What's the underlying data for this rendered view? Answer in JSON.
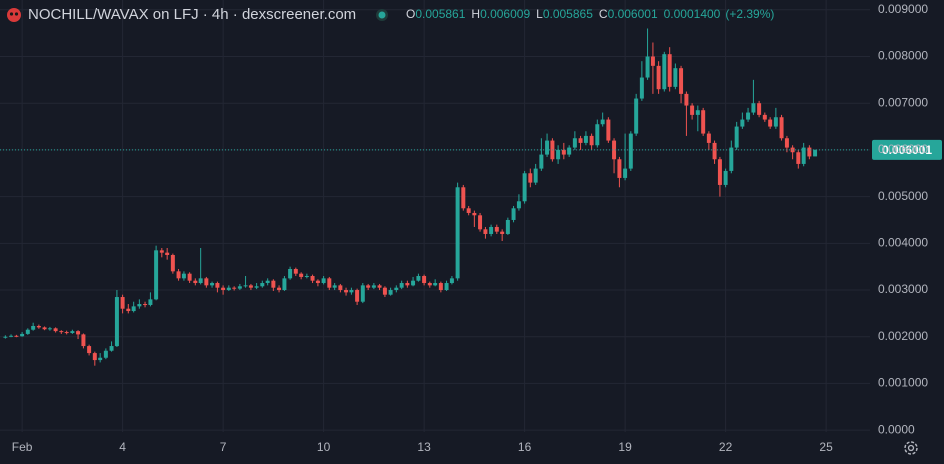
{
  "chart_data": {
    "type": "candlestick",
    "title": "NOCHILL/WAVAX on LFJ · 4h · dexscreener.com",
    "ohlc_letters": [
      "O",
      "H",
      "L",
      "C"
    ],
    "change_label": "0.0001400",
    "change_pct_label": "(+2.39%)",
    "up_color": "#26a69a",
    "down_color": "#ef5350",
    "grid": true,
    "xlim": [
      0.34,
      26.31
    ],
    "xticks": [
      {
        "value": 1,
        "label": "Feb"
      },
      4,
      7,
      10,
      13,
      16,
      19,
      22,
      25
    ],
    "ylim": [
      -4e-05,
      0.00921
    ],
    "yticks": [
      {
        "value": 0,
        "label": "0.0000"
      },
      {
        "value": 0.001,
        "label": "0.001000"
      },
      {
        "value": 0.002,
        "label": "0.002000"
      },
      {
        "value": 0.003,
        "label": "0.003000"
      },
      {
        "value": 0.004,
        "label": "0.004000"
      },
      {
        "value": 0.005,
        "label": "0.005000"
      },
      {
        "value": 0.006,
        "label": "0.006000"
      },
      {
        "value": 0.007,
        "label": "0.007000"
      },
      {
        "value": 0.008,
        "label": "0.008000"
      },
      {
        "value": 0.009,
        "label": "0.009000"
      }
    ],
    "x": [
      0.5,
      0.67,
      0.83,
      1,
      1.17,
      1.33,
      1.5,
      1.67,
      1.83,
      2,
      2.17,
      2.33,
      2.5,
      2.67,
      2.83,
      3,
      3.17,
      3.33,
      3.5,
      3.67,
      3.83,
      4,
      4.17,
      4.33,
      4.5,
      4.67,
      4.83,
      5,
      5.17,
      5.33,
      5.5,
      5.67,
      5.83,
      6,
      6.17,
      6.33,
      6.5,
      6.67,
      6.83,
      7,
      7.17,
      7.33,
      7.5,
      7.67,
      7.83,
      8,
      8.17,
      8.33,
      8.5,
      8.67,
      8.83,
      9,
      9.17,
      9.33,
      9.5,
      9.67,
      9.83,
      10,
      10.17,
      10.33,
      10.5,
      10.67,
      10.83,
      11,
      11.17,
      11.33,
      11.5,
      11.67,
      11.83,
      12,
      12.17,
      12.33,
      12.5,
      12.67,
      12.83,
      13,
      13.17,
      13.33,
      13.5,
      13.67,
      13.83,
      14,
      14.17,
      14.33,
      14.5,
      14.67,
      14.83,
      15,
      15.17,
      15.33,
      15.5,
      15.67,
      15.83,
      16,
      16.17,
      16.33,
      16.5,
      16.67,
      16.83,
      17,
      17.17,
      17.33,
      17.5,
      17.67,
      17.83,
      18,
      18.17,
      18.33,
      18.5,
      18.67,
      18.83,
      19,
      19.17,
      19.33,
      19.5,
      19.67,
      19.83,
      20,
      20.17,
      20.33,
      20.5,
      20.67,
      20.83,
      21,
      21.17,
      21.33,
      21.5,
      21.67,
      21.83,
      22,
      22.17,
      22.33,
      22.5,
      22.67,
      22.83,
      23,
      23.17,
      23.33,
      23.5,
      23.67,
      23.83,
      24,
      24.17,
      24.33,
      24.5,
      24.67
    ],
    "open": [
      0.00198,
      0.002,
      0.00202,
      0.00201,
      0.00206,
      0.00215,
      0.00223,
      0.0022,
      0.00216,
      0.00218,
      0.00212,
      0.0021,
      0.00208,
      0.00212,
      0.00205,
      0.0018,
      0.00165,
      0.0015,
      0.00155,
      0.0017,
      0.0018,
      0.00285,
      0.0026,
      0.00255,
      0.00265,
      0.0027,
      0.00268,
      0.0028,
      0.00385,
      0.0038,
      0.00375,
      0.0034,
      0.00325,
      0.00335,
      0.0032,
      0.00315,
      0.00325,
      0.0031,
      0.00315,
      0.00305,
      0.003,
      0.00305,
      0.00303,
      0.00308,
      0.0031,
      0.00305,
      0.00308,
      0.00315,
      0.0032,
      0.00305,
      0.003,
      0.00325,
      0.00345,
      0.00335,
      0.00328,
      0.0033,
      0.0032,
      0.00315,
      0.00325,
      0.00305,
      0.0031,
      0.003,
      0.00295,
      0.003,
      0.00275,
      0.0031,
      0.00305,
      0.0031,
      0.00305,
      0.0029,
      0.003,
      0.00305,
      0.00315,
      0.0031,
      0.0032,
      0.0033,
      0.00315,
      0.0031,
      0.00315,
      0.003,
      0.00315,
      0.00325,
      0.0052,
      0.00475,
      0.00465,
      0.0046,
      0.0043,
      0.0042,
      0.00435,
      0.00425,
      0.0042,
      0.0045,
      0.00475,
      0.0049,
      0.0055,
      0.0053,
      0.0056,
      0.0059,
      0.0062,
      0.0058,
      0.006,
      0.0059,
      0.00605,
      0.00625,
      0.00615,
      0.0063,
      0.0061,
      0.00655,
      0.00665,
      0.0062,
      0.0058,
      0.0054,
      0.0056,
      0.00635,
      0.0071,
      0.00755,
      0.008,
      0.0078,
      0.0073,
      0.00805,
      0.00735,
      0.00775,
      0.0072,
      0.00695,
      0.00675,
      0.00685,
      0.00635,
      0.00615,
      0.0058,
      0.00525,
      0.00555,
      0.00605,
      0.0065,
      0.00665,
      0.0068,
      0.007,
      0.00675,
      0.00665,
      0.0065,
      0.0067,
      0.00625,
      0.00605,
      0.00595,
      0.0057,
      0.00605,
      0.005861
    ],
    "high": [
      0.00203,
      0.00205,
      0.00204,
      0.0021,
      0.00218,
      0.0023,
      0.00226,
      0.00222,
      0.00221,
      0.0022,
      0.00214,
      0.00213,
      0.00215,
      0.00214,
      0.00207,
      0.00183,
      0.00168,
      0.00165,
      0.00175,
      0.0019,
      0.003,
      0.0029,
      0.0027,
      0.00275,
      0.0028,
      0.00275,
      0.00295,
      0.00395,
      0.0039,
      0.0039,
      0.00378,
      0.00345,
      0.0034,
      0.00338,
      0.00325,
      0.0039,
      0.00328,
      0.00318,
      0.00318,
      0.0031,
      0.0031,
      0.00308,
      0.00313,
      0.0033,
      0.00313,
      0.00315,
      0.0032,
      0.00325,
      0.00323,
      0.0031,
      0.0033,
      0.0035,
      0.00348,
      0.00338,
      0.00335,
      0.00333,
      0.00323,
      0.0033,
      0.00328,
      0.00315,
      0.00313,
      0.00305,
      0.00305,
      0.00303,
      0.00315,
      0.00313,
      0.00315,
      0.00313,
      0.00308,
      0.00305,
      0.0031,
      0.0032,
      0.0032,
      0.00328,
      0.00335,
      0.00333,
      0.00318,
      0.00323,
      0.00318,
      0.0032,
      0.0033,
      0.0053,
      0.00525,
      0.0048,
      0.0047,
      0.00465,
      0.00435,
      0.0044,
      0.0044,
      0.0043,
      0.00455,
      0.0048,
      0.00505,
      0.00555,
      0.0056,
      0.0057,
      0.00625,
      0.00635,
      0.00625,
      0.0061,
      0.00615,
      0.0061,
      0.0064,
      0.0063,
      0.0064,
      0.00635,
      0.00665,
      0.0068,
      0.0067,
      0.00625,
      0.00585,
      0.00635,
      0.0064,
      0.0072,
      0.0079,
      0.0086,
      0.0083,
      0.0079,
      0.0081,
      0.0082,
      0.00785,
      0.0078,
      0.00725,
      0.007,
      0.00695,
      0.0069,
      0.0064,
      0.0062,
      0.00585,
      0.0056,
      0.0062,
      0.0066,
      0.0068,
      0.0069,
      0.0075,
      0.00705,
      0.0068,
      0.0067,
      0.0069,
      0.00675,
      0.0063,
      0.0061,
      0.006,
      0.00615,
      0.0061,
      0.006009
    ],
    "low": [
      0.00196,
      0.00199,
      0.00199,
      0.002,
      0.00204,
      0.00213,
      0.00217,
      0.00214,
      0.00213,
      0.00209,
      0.00206,
      0.00205,
      0.00206,
      0.00195,
      0.00175,
      0.0016,
      0.00138,
      0.00145,
      0.00152,
      0.00168,
      0.00178,
      0.0025,
      0.0025,
      0.00252,
      0.0026,
      0.00263,
      0.00265,
      0.00278,
      0.0037,
      0.00365,
      0.00335,
      0.0032,
      0.0032,
      0.00315,
      0.0031,
      0.00312,
      0.00305,
      0.00305,
      0.00295,
      0.0029,
      0.00298,
      0.00299,
      0.003,
      0.00305,
      0.003,
      0.00302,
      0.00305,
      0.0031,
      0.00298,
      0.00295,
      0.00298,
      0.00322,
      0.0033,
      0.00323,
      0.00325,
      0.00315,
      0.00308,
      0.00312,
      0.003,
      0.003,
      0.00295,
      0.00288,
      0.0029,
      0.00268,
      0.00272,
      0.003,
      0.00302,
      0.003,
      0.00285,
      0.00288,
      0.00295,
      0.00302,
      0.00305,
      0.00308,
      0.00318,
      0.0031,
      0.00305,
      0.00308,
      0.00295,
      0.00298,
      0.00312,
      0.0032,
      0.0047,
      0.0046,
      0.00435,
      0.00425,
      0.0041,
      0.00415,
      0.0042,
      0.00405,
      0.00418,
      0.00445,
      0.0047,
      0.00485,
      0.0052,
      0.00525,
      0.00555,
      0.00585,
      0.00575,
      0.0057,
      0.0058,
      0.00585,
      0.006,
      0.006,
      0.0061,
      0.006,
      0.00605,
      0.0065,
      0.00615,
      0.0055,
      0.0052,
      0.00535,
      0.00555,
      0.0063,
      0.00705,
      0.0075,
      0.0072,
      0.0072,
      0.00725,
      0.00725,
      0.0073,
      0.007,
      0.0063,
      0.00665,
      0.0064,
      0.0063,
      0.006,
      0.0057,
      0.005,
      0.0052,
      0.0055,
      0.006,
      0.00645,
      0.0066,
      0.00675,
      0.0067,
      0.0066,
      0.00645,
      0.00645,
      0.0062,
      0.00595,
      0.0058,
      0.0056,
      0.00565,
      0.0058,
      0.005865
    ],
    "close": [
      0.002,
      0.00202,
      0.00201,
      0.00206,
      0.00215,
      0.00223,
      0.0022,
      0.00216,
      0.00218,
      0.00212,
      0.0021,
      0.00208,
      0.00212,
      0.00205,
      0.0018,
      0.00165,
      0.0015,
      0.00155,
      0.0017,
      0.0018,
      0.00285,
      0.0026,
      0.00255,
      0.00265,
      0.0027,
      0.00268,
      0.0028,
      0.00385,
      0.0038,
      0.00375,
      0.0034,
      0.00325,
      0.00335,
      0.0032,
      0.00315,
      0.00325,
      0.0031,
      0.00315,
      0.00305,
      0.003,
      0.00305,
      0.00303,
      0.00308,
      0.0031,
      0.00305,
      0.00308,
      0.00315,
      0.0032,
      0.00305,
      0.003,
      0.00325,
      0.00345,
      0.00335,
      0.00328,
      0.0033,
      0.0032,
      0.00315,
      0.00325,
      0.00305,
      0.0031,
      0.003,
      0.00295,
      0.003,
      0.00275,
      0.0031,
      0.00305,
      0.0031,
      0.00305,
      0.0029,
      0.003,
      0.00305,
      0.00315,
      0.0031,
      0.0032,
      0.0033,
      0.00315,
      0.0031,
      0.00315,
      0.003,
      0.00315,
      0.00325,
      0.0052,
      0.00475,
      0.00465,
      0.0046,
      0.0043,
      0.0042,
      0.00435,
      0.00425,
      0.0042,
      0.0045,
      0.00475,
      0.0049,
      0.0055,
      0.0053,
      0.0056,
      0.0059,
      0.0062,
      0.0058,
      0.006,
      0.0059,
      0.00605,
      0.00625,
      0.00615,
      0.0063,
      0.0061,
      0.00655,
      0.00665,
      0.0062,
      0.0058,
      0.0054,
      0.0056,
      0.00635,
      0.0071,
      0.00755,
      0.008,
      0.0078,
      0.0073,
      0.00805,
      0.00735,
      0.00775,
      0.0072,
      0.00695,
      0.00675,
      0.00685,
      0.00635,
      0.00615,
      0.0058,
      0.00525,
      0.00555,
      0.00605,
      0.0065,
      0.00665,
      0.0068,
      0.007,
      0.00675,
      0.00665,
      0.0065,
      0.0067,
      0.00625,
      0.00605,
      0.00595,
      0.0057,
      0.00605,
      0.00586,
      0.006001
    ]
  }
}
